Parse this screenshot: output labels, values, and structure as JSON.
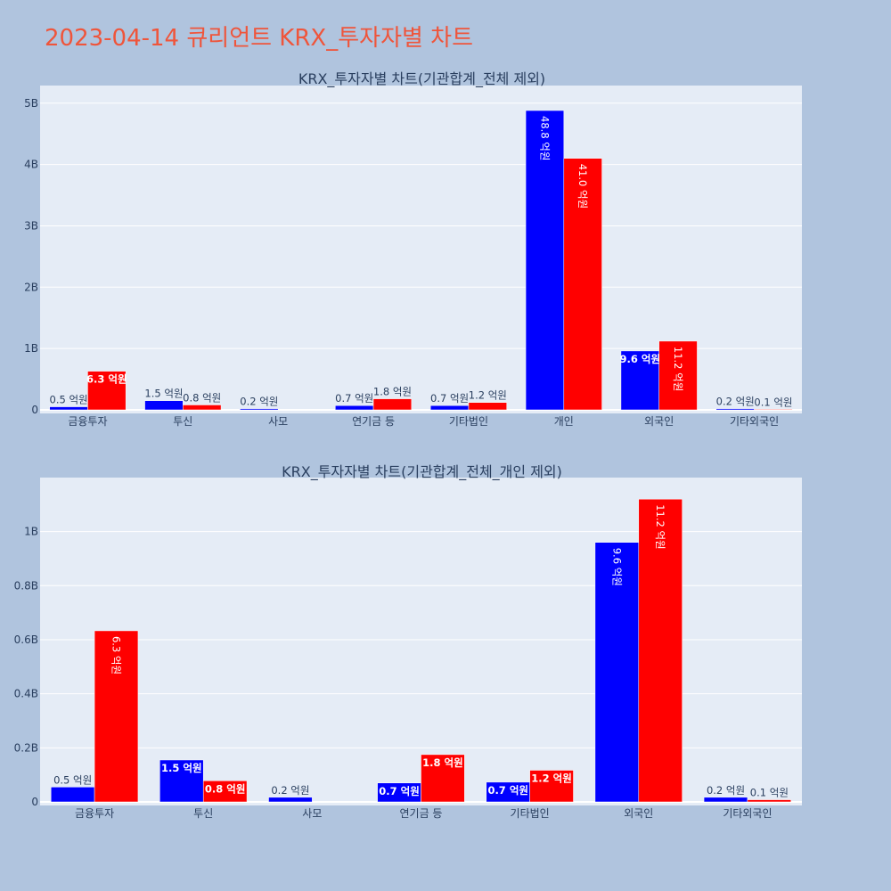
{
  "title": "2023-04-14 큐리언트 KRX_투자자별 차트",
  "colors": {
    "buy": "#0000ff",
    "sell": "#ff0000",
    "title": "#ef553b",
    "plot_bg": "#e5ecf6",
    "page_bg": "#b0c4de",
    "text": "#2a3f5f"
  },
  "chart_data": [
    {
      "type": "bar",
      "title": "KRX_투자자별 차트(기관합계_전체 제외)",
      "categories": [
        "금융투자",
        "투신",
        "사모",
        "연기금 등",
        "기타법인",
        "개인",
        "외국인",
        "기타외국인"
      ],
      "series": [
        {
          "color": "#0000ff",
          "values": [
            0.05,
            0.15,
            0.02,
            0.07,
            0.07,
            4.88,
            0.96,
            0.02
          ],
          "labels": [
            "0.5 억원",
            "1.5 억원",
            "0.2 억원",
            "0.7 억원",
            "0.7 억원",
            "48.8 억원",
            "9.6 억원",
            "0.2 억원"
          ]
        },
        {
          "color": "#ff0000",
          "values": [
            0.63,
            0.08,
            0,
            0.18,
            0.12,
            4.1,
            1.12,
            0.01
          ],
          "labels": [
            "6.3 억원",
            "0.8 억원",
            "",
            "1.8 억원",
            "1.2 억원",
            "41.0 억원",
            "11.2 억원",
            "0.1 억원"
          ]
        }
      ],
      "yticks": [
        0,
        1,
        2,
        3,
        4,
        5
      ],
      "ytick_labels": [
        "0",
        "1B",
        "2B",
        "3B",
        "4B",
        "5B"
      ],
      "ylim": [
        0,
        5.2
      ],
      "grid": true
    },
    {
      "type": "bar",
      "title": "KRX_투자자별 차트(기관합계_전체_개인 제외)",
      "categories": [
        "금융투자",
        "투신",
        "사모",
        "연기금 등",
        "기타법인",
        "외국인",
        "기타외국인"
      ],
      "series": [
        {
          "color": "#0000ff",
          "values": [
            0.055,
            0.155,
            0.017,
            0.07,
            0.073,
            0.96,
            0.017
          ],
          "labels": [
            "0.5 억원",
            "1.5 억원",
            "0.2 억원",
            "0.7 억원",
            "0.7 억원",
            "9.6 억원",
            "0.2 억원"
          ]
        },
        {
          "color": "#ff0000",
          "values": [
            0.633,
            0.078,
            0,
            0.175,
            0.117,
            1.12,
            0.008
          ],
          "labels": [
            "6.3 억원",
            "0.8 억원",
            "",
            "1.8 억원",
            "1.2 억원",
            "11.2 억원",
            "0.1 억원"
          ]
        }
      ],
      "yticks": [
        0,
        0.2,
        0.4,
        0.6,
        0.8,
        1
      ],
      "ytick_labels": [
        "0",
        "0.2B",
        "0.4B",
        "0.6B",
        "0.8B",
        "1B"
      ],
      "ylim": [
        0,
        1.18
      ],
      "grid": true
    }
  ]
}
